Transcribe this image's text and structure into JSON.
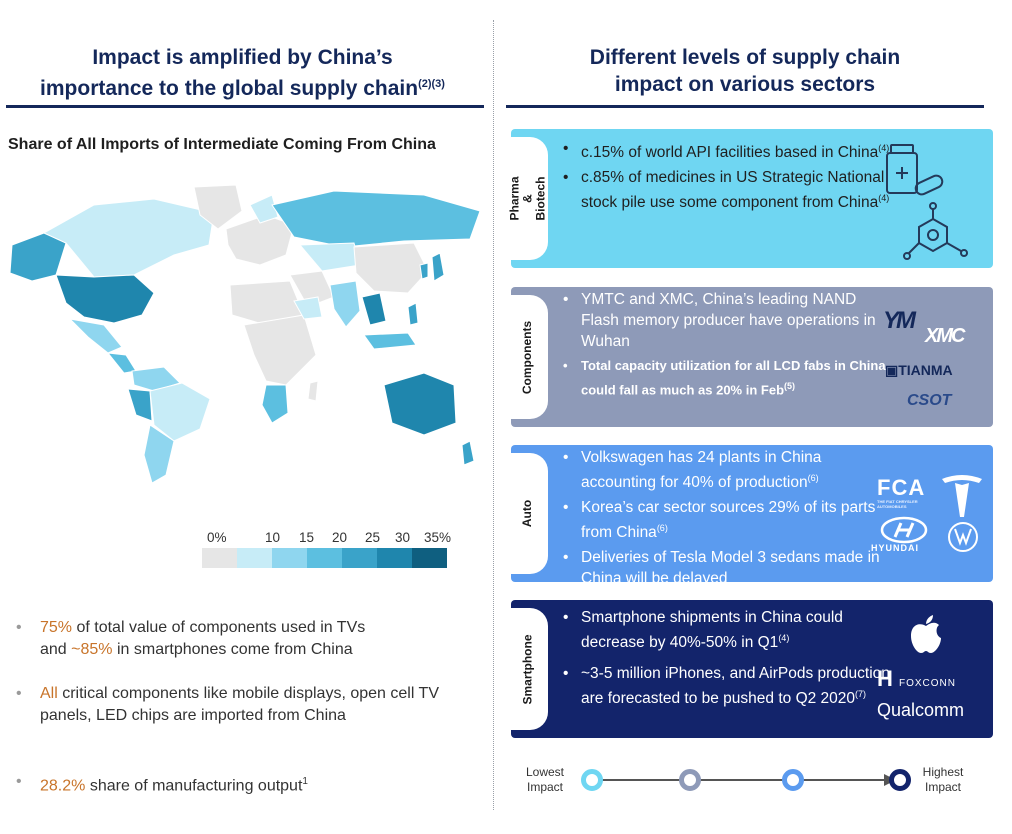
{
  "left": {
    "title_line1": "Impact is amplified by China’s",
    "title_line2": "importance to the global supply chain",
    "title_sup": "(2)(3)",
    "subtitle": "Share of All Imports of Intermediate Coming From China",
    "legend": {
      "labels": [
        "0%",
        "10",
        "15",
        "20",
        "25",
        "30",
        "35%"
      ],
      "colors": [
        "#e6e6e6",
        "#c7ecf7",
        "#8fd6ef",
        "#5cbfe0",
        "#3aa3c9",
        "#1f86ad",
        "#0f5f80"
      ]
    },
    "bullets": [
      {
        "hl": "75%",
        "rest": " of total value of components used in TVs",
        "hl2": "~85%",
        "rest2": " in smartphones come from China",
        "join": "and "
      },
      {
        "hl": "All",
        "rest": " critical components like mobile displays, open cell TV panels, LED chips are imported from China"
      },
      {
        "hl": "28.2%",
        "rest": " share of manufacturing output",
        "sup": "1"
      }
    ]
  },
  "right": {
    "title_line1": "Different levels of supply chain",
    "title_line2": "impact on various sectors",
    "sectors": [
      {
        "tab": "Pharma & Biotech",
        "color": "#6fd6f2",
        "items": [
          {
            "text": "c.15% of world API facilities based in China",
            "sup": "(4)"
          },
          {
            "text": "c.85% of medicines in US Strategic National stock pile use some component from China",
            "sup": "(4)"
          }
        ],
        "icons": [
          "medicine-bottle-icon",
          "molecule-icon"
        ]
      },
      {
        "tab": "Components",
        "color": "#8e9ab8",
        "items": [
          {
            "text": "YMTC and XMC, China’s leading NAND Flash memory producer have operations in Wuhan",
            "sup": ""
          },
          {
            "text": "Total capacity utilization for all LCD fabs in China could fall as much as 20% in Feb",
            "sup": "(5)"
          }
        ],
        "logos": [
          "YM",
          "XMC",
          "TIANMA",
          "CSOT"
        ]
      },
      {
        "tab": "Auto",
        "color": "#5b9bef",
        "items": [
          {
            "text": "Volkswagen has 24 plants in China accounting for 40% of production",
            "sup": "(6)"
          },
          {
            "text": "Korea’s car sector sources 29% of its parts from China",
            "sup": "(6)"
          },
          {
            "text": "Deliveries of Tesla Model 3 sedans made in China will be delayed",
            "sup": ""
          }
        ],
        "logos": [
          "FCA",
          "THE FIAT CHRYSLER AUTOMOBILES",
          "HYUNDAI"
        ]
      },
      {
        "tab": "Smartphone",
        "color": "#13246b",
        "items": [
          {
            "text": "Smartphone shipments in China could decrease by 40%-50% in Q1",
            "sup": "(4)"
          },
          {
            "text": "~3-5 million iPhones, and AirPods production are forecasted to be pushed to Q2 2020",
            "sup": "(7)"
          }
        ],
        "logos": [
          "FOXCONN",
          "Qualcomm"
        ]
      }
    ],
    "scale": {
      "low_line1": "Lowest",
      "low_line2": "Impact",
      "high_line1": "Highest",
      "high_line2": "Impact",
      "colors": [
        "#6fd6f2",
        "#8e9ab8",
        "#5b9bef",
        "#13246b"
      ]
    }
  }
}
